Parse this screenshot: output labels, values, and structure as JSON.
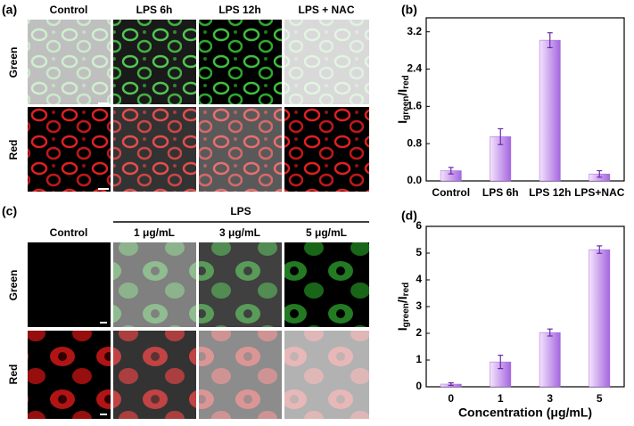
{
  "panel_labels": [
    "(a)",
    "(b)",
    "(c)",
    "(d)"
  ],
  "panel_a": {
    "columns": [
      "Control",
      "LPS 6h",
      "LPS 12h",
      "LPS + NAC"
    ],
    "rows": [
      "Green",
      "Red"
    ]
  },
  "panel_c": {
    "group": "LPS",
    "columns": [
      "Control",
      "1 μg/mL",
      "3 μg/mL",
      "5 μg/mL"
    ],
    "rows": [
      "Green",
      "Red"
    ]
  },
  "chart_data": [
    {
      "type": "bar",
      "ylabel": [
        "I",
        "green",
        "/I",
        "red"
      ],
      "categories": [
        "Control",
        "LPS 6h",
        "LPS 12h",
        "LPS+NAC"
      ],
      "values": [
        0.22,
        0.95,
        3.02,
        0.15
      ],
      "errors": [
        0.07,
        0.17,
        0.16,
        0.07
      ],
      "color": "#a466e0",
      "ylim": [
        0,
        3.5
      ],
      "yticks": [
        {
          "value": 0,
          "label": "0.0"
        },
        0.8,
        1.6,
        2.4,
        3.2
      ]
    },
    {
      "type": "bar",
      "ylabel": [
        "I",
        "green",
        "/I",
        "red"
      ],
      "xlabel": "Concentration (μg/mL)",
      "categories": [
        "0",
        "1",
        "3",
        "5"
      ],
      "values": [
        0.1,
        0.93,
        2.03,
        5.13
      ],
      "errors": [
        0.05,
        0.25,
        0.13,
        0.14
      ],
      "color": "#a466e0",
      "ylim": [
        0,
        6
      ],
      "yticks": [
        0,
        1,
        2,
        3,
        4,
        5,
        6
      ]
    }
  ]
}
